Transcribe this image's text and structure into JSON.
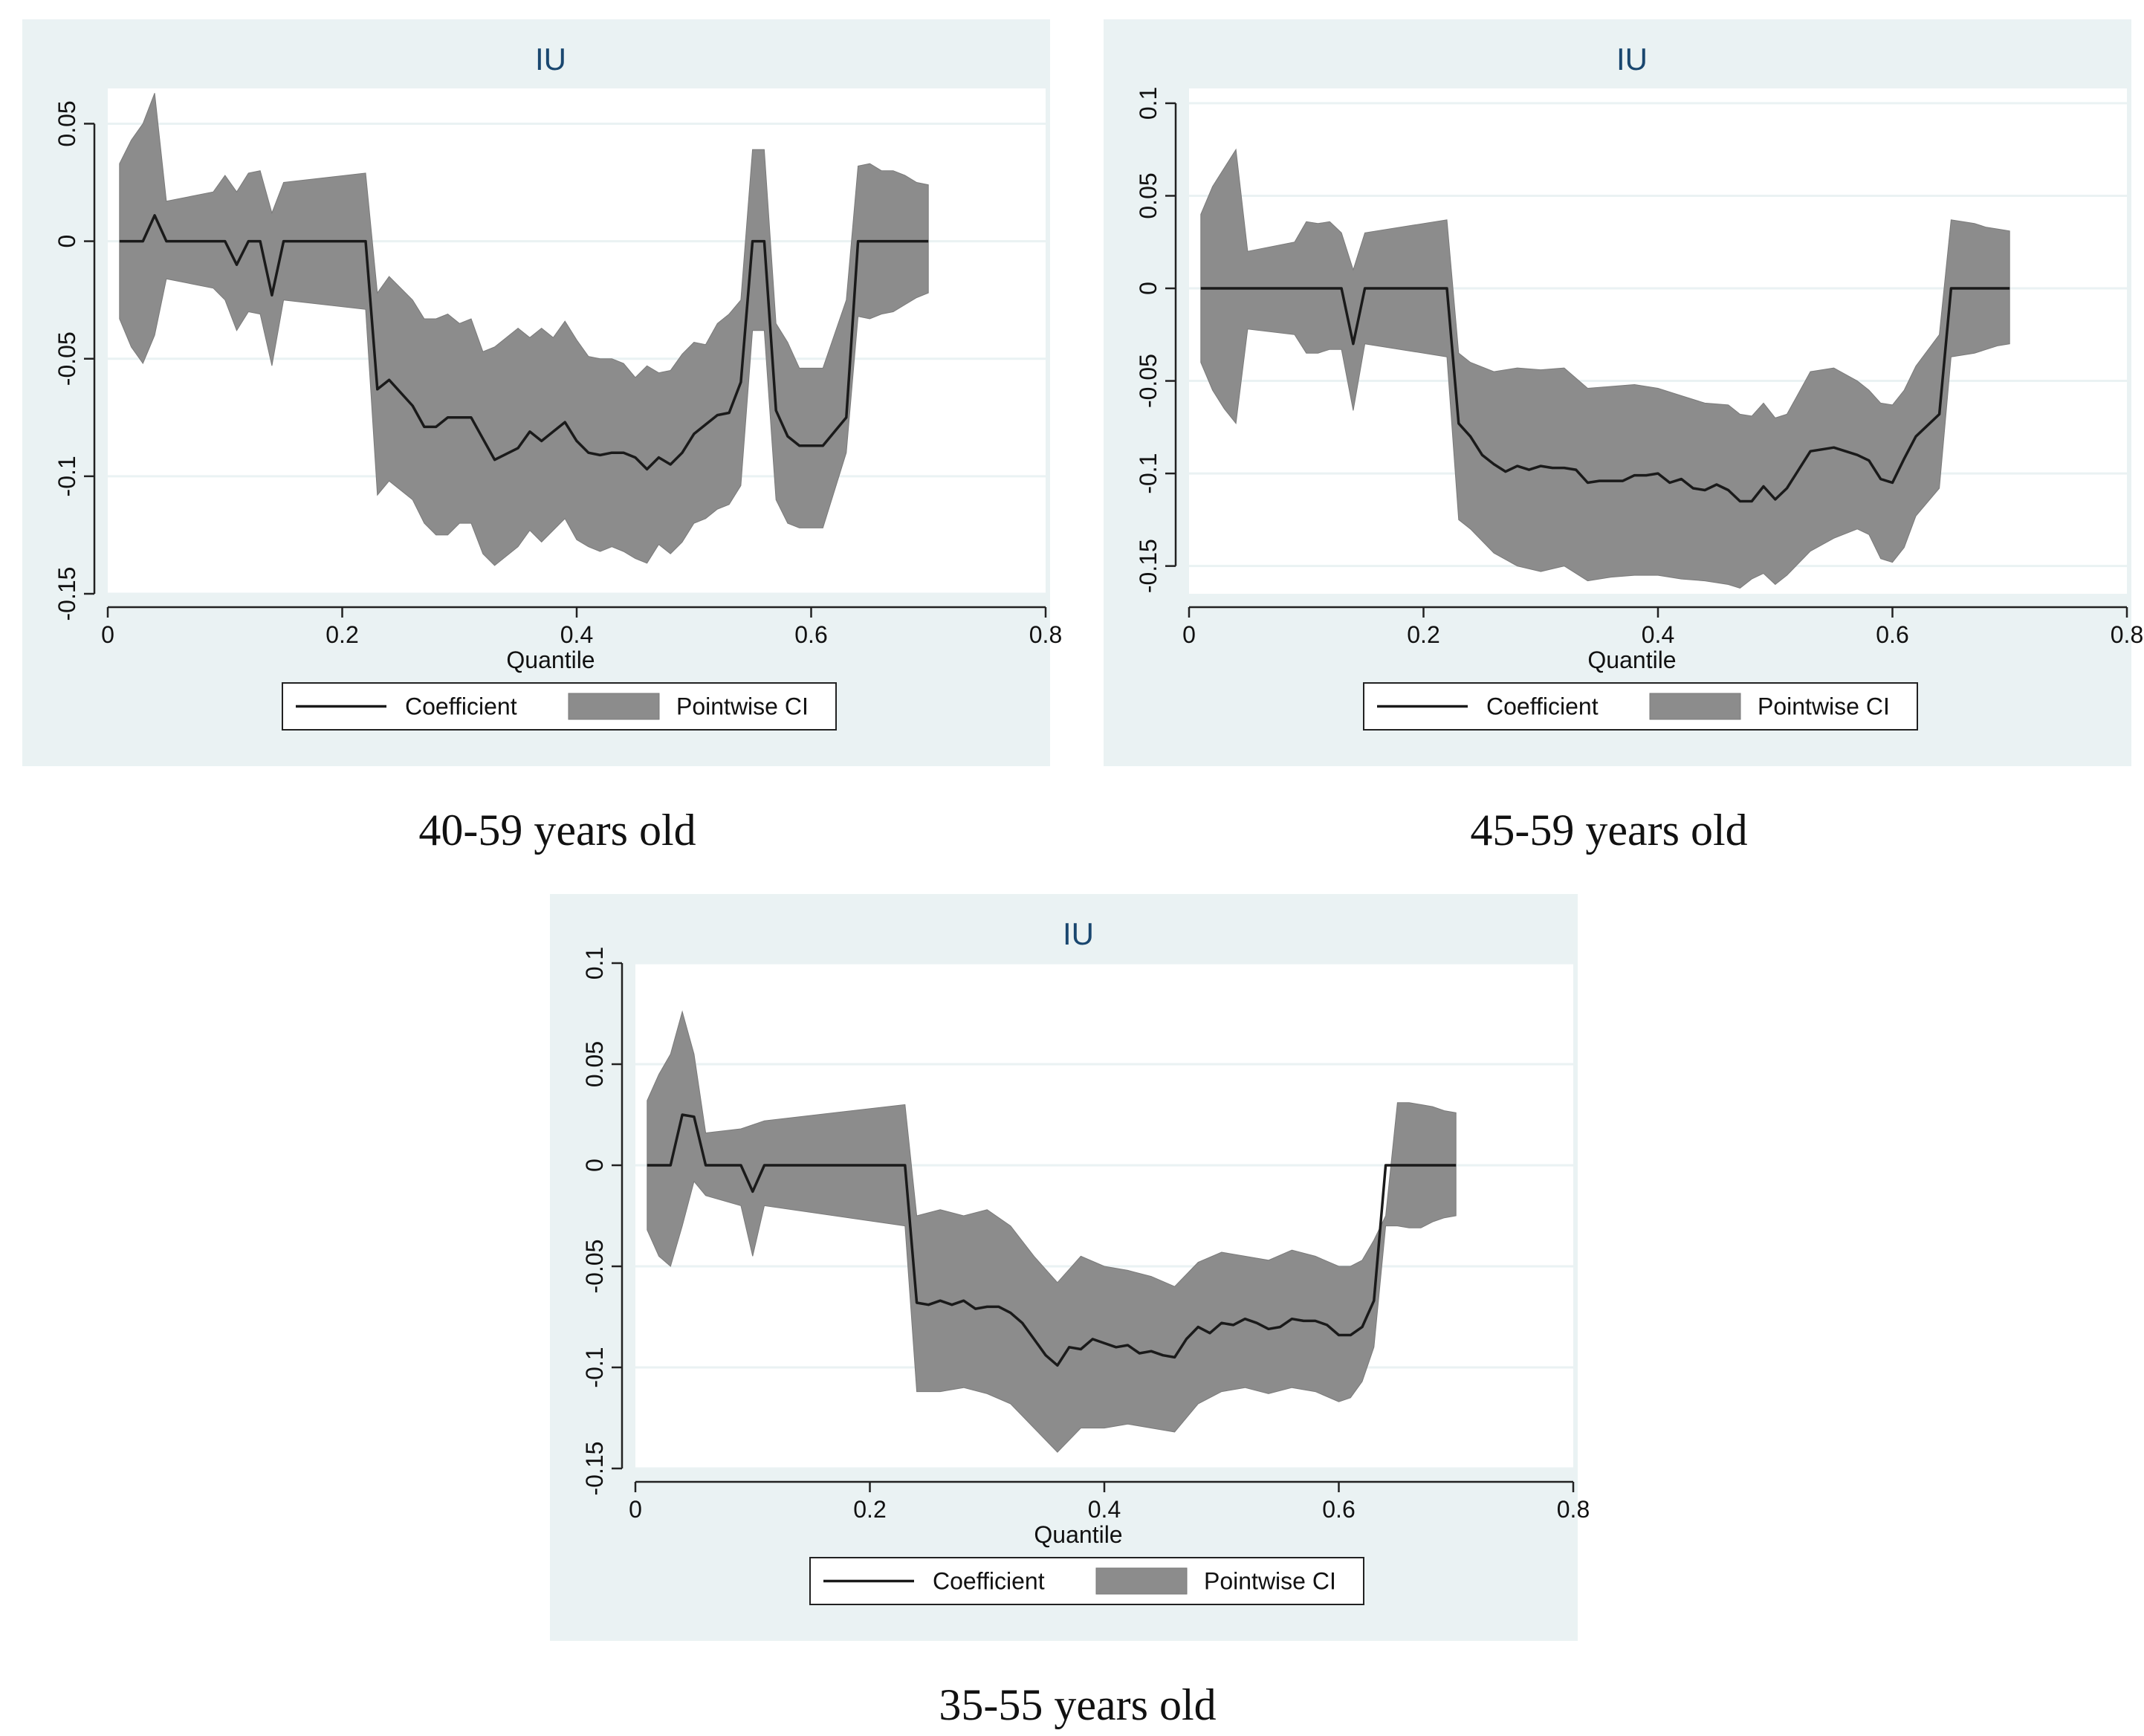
{
  "captions": [
    "40-59 years old",
    "45-59 years old",
    "35-55 years old"
  ],
  "colors": {
    "panel_bg": "#eaf2f3",
    "plot_bg": "#ffffff",
    "ci_fill": "#8c8c8c",
    "coef_line": "#1a1a1a",
    "grid": "#eaf2f3",
    "title": "#1a476f"
  },
  "chart_data": [
    {
      "type": "line",
      "title": "IU",
      "xlabel": "Quantile",
      "ylabel": "",
      "xlim": [
        0,
        0.8
      ],
      "ylim": [
        -0.15,
        0.065
      ],
      "xticks": [
        0,
        0.2,
        0.4,
        0.6,
        0.8
      ],
      "xtick_labels": [
        "0",
        "0.2",
        "0.4",
        "0.6",
        "0.8"
      ],
      "yticks": [
        0.05,
        0,
        -0.05,
        -0.1,
        -0.15
      ],
      "ytick_labels": [
        "0.05",
        "0",
        "-0.05",
        "-0.1",
        "-0.15"
      ],
      "legend": [
        "Coefficient",
        "Pointwise CI"
      ],
      "legend_position": "bottom",
      "series": [
        {
          "name": "Coefficient",
          "x": [
            0.01,
            0.03,
            0.04,
            0.05,
            0.1,
            0.11,
            0.12,
            0.13,
            0.14,
            0.15,
            0.22,
            0.23,
            0.24,
            0.26,
            0.27,
            0.28,
            0.29,
            0.3,
            0.31,
            0.32,
            0.33,
            0.35,
            0.36,
            0.37,
            0.38,
            0.39,
            0.4,
            0.41,
            0.42,
            0.43,
            0.44,
            0.45,
            0.46,
            0.47,
            0.48,
            0.49,
            0.5,
            0.51,
            0.52,
            0.53,
            0.54,
            0.55,
            0.56,
            0.57,
            0.58,
            0.59,
            0.6,
            0.61,
            0.63,
            0.64,
            0.7
          ],
          "values": [
            0,
            0,
            0.011,
            0,
            0,
            -0.01,
            0,
            0,
            -0.023,
            0,
            0,
            -0.063,
            -0.059,
            -0.07,
            -0.079,
            -0.079,
            -0.075,
            -0.075,
            -0.075,
            -0.084,
            -0.093,
            -0.088,
            -0.081,
            -0.085,
            -0.081,
            -0.077,
            -0.085,
            -0.09,
            -0.091,
            -0.09,
            -0.09,
            -0.092,
            -0.097,
            -0.092,
            -0.095,
            -0.09,
            -0.082,
            -0.078,
            -0.074,
            -0.073,
            -0.06,
            0,
            0,
            -0.072,
            -0.083,
            -0.087,
            -0.087,
            -0.087,
            -0.075,
            0,
            0
          ]
        },
        {
          "name": "Pointwise CI upper",
          "x": [
            0.01,
            0.02,
            0.03,
            0.04,
            0.05,
            0.09,
            0.1,
            0.11,
            0.12,
            0.13,
            0.14,
            0.15,
            0.22,
            0.23,
            0.24,
            0.26,
            0.27,
            0.28,
            0.29,
            0.3,
            0.31,
            0.32,
            0.33,
            0.35,
            0.36,
            0.37,
            0.38,
            0.39,
            0.4,
            0.41,
            0.42,
            0.43,
            0.44,
            0.45,
            0.46,
            0.47,
            0.48,
            0.49,
            0.5,
            0.51,
            0.52,
            0.53,
            0.54,
            0.55,
            0.56,
            0.57,
            0.58,
            0.59,
            0.6,
            0.61,
            0.63,
            0.64,
            0.65,
            0.66,
            0.67,
            0.68,
            0.69,
            0.7
          ],
          "values": [
            0.033,
            0.043,
            0.05,
            0.063,
            0.017,
            0.021,
            0.028,
            0.021,
            0.029,
            0.03,
            0.012,
            0.025,
            0.029,
            -0.022,
            -0.015,
            -0.025,
            -0.033,
            -0.033,
            -0.031,
            -0.035,
            -0.033,
            -0.047,
            -0.045,
            -0.037,
            -0.041,
            -0.037,
            -0.041,
            -0.034,
            -0.042,
            -0.049,
            -0.05,
            -0.05,
            -0.052,
            -0.058,
            -0.053,
            -0.056,
            -0.055,
            -0.048,
            -0.043,
            -0.044,
            -0.035,
            -0.031,
            -0.025,
            0.039,
            0.039,
            -0.035,
            -0.043,
            -0.054,
            -0.054,
            -0.054,
            -0.025,
            0.032,
            0.033,
            0.03,
            0.03,
            0.028,
            0.025,
            0.024
          ]
        },
        {
          "name": "Pointwise CI lower",
          "x": [
            0.01,
            0.02,
            0.03,
            0.04,
            0.05,
            0.09,
            0.1,
            0.11,
            0.12,
            0.13,
            0.14,
            0.15,
            0.22,
            0.23,
            0.24,
            0.26,
            0.27,
            0.28,
            0.29,
            0.3,
            0.31,
            0.32,
            0.33,
            0.35,
            0.36,
            0.37,
            0.38,
            0.39,
            0.4,
            0.41,
            0.42,
            0.43,
            0.44,
            0.45,
            0.46,
            0.47,
            0.48,
            0.49,
            0.5,
            0.51,
            0.52,
            0.53,
            0.54,
            0.55,
            0.56,
            0.57,
            0.58,
            0.59,
            0.6,
            0.61,
            0.63,
            0.64,
            0.65,
            0.66,
            0.67,
            0.68,
            0.69,
            0.7
          ],
          "values": [
            -0.033,
            -0.045,
            -0.052,
            -0.04,
            -0.016,
            -0.02,
            -0.025,
            -0.038,
            -0.03,
            -0.031,
            -0.053,
            -0.025,
            -0.029,
            -0.108,
            -0.102,
            -0.11,
            -0.12,
            -0.125,
            -0.125,
            -0.12,
            -0.12,
            -0.133,
            -0.138,
            -0.13,
            -0.123,
            -0.128,
            -0.123,
            -0.118,
            -0.127,
            -0.13,
            -0.132,
            -0.13,
            -0.132,
            -0.135,
            -0.137,
            -0.129,
            -0.133,
            -0.128,
            -0.12,
            -0.118,
            -0.114,
            -0.112,
            -0.104,
            -0.038,
            -0.038,
            -0.11,
            -0.12,
            -0.122,
            -0.122,
            -0.122,
            -0.09,
            -0.032,
            -0.033,
            -0.031,
            -0.03,
            -0.027,
            -0.024,
            -0.022
          ]
        }
      ]
    },
    {
      "type": "line",
      "title": "IU",
      "xlabel": "Quantile",
      "ylabel": "",
      "xlim": [
        0,
        0.8
      ],
      "ylim": [
        -0.165,
        0.108
      ],
      "xticks": [
        0,
        0.2,
        0.4,
        0.6,
        0.8
      ],
      "xtick_labels": [
        "0",
        "0.2",
        "0.4",
        "0.6",
        "0.8"
      ],
      "yticks": [
        0.1,
        0.05,
        0,
        -0.05,
        -0.1,
        -0.15
      ],
      "ytick_labels": [
        "0.1",
        "0.05",
        "0",
        "-0.05",
        "-0.1",
        "-0.15"
      ],
      "legend": [
        "Coefficient",
        "Pointwise CI"
      ],
      "legend_position": "bottom",
      "series": [
        {
          "name": "Coefficient",
          "x": [
            0.01,
            0.13,
            0.14,
            0.15,
            0.22,
            0.23,
            0.24,
            0.25,
            0.26,
            0.27,
            0.28,
            0.29,
            0.3,
            0.31,
            0.32,
            0.33,
            0.34,
            0.35,
            0.36,
            0.37,
            0.38,
            0.39,
            0.4,
            0.41,
            0.42,
            0.43,
            0.44,
            0.45,
            0.46,
            0.47,
            0.48,
            0.49,
            0.5,
            0.51,
            0.52,
            0.53,
            0.54,
            0.55,
            0.56,
            0.57,
            0.58,
            0.59,
            0.6,
            0.61,
            0.62,
            0.64,
            0.65,
            0.7
          ],
          "values": [
            0,
            0,
            -0.03,
            0,
            0,
            -0.073,
            -0.08,
            -0.09,
            -0.095,
            -0.099,
            -0.096,
            -0.098,
            -0.096,
            -0.097,
            -0.097,
            -0.098,
            -0.105,
            -0.104,
            -0.104,
            -0.104,
            -0.101,
            -0.101,
            -0.1,
            -0.105,
            -0.103,
            -0.108,
            -0.109,
            -0.106,
            -0.109,
            -0.115,
            -0.115,
            -0.107,
            -0.114,
            -0.108,
            -0.098,
            -0.088,
            -0.087,
            -0.086,
            -0.088,
            -0.09,
            -0.093,
            -0.103,
            -0.105,
            -0.092,
            -0.08,
            -0.068,
            0,
            0
          ]
        },
        {
          "name": "Pointwise CI upper",
          "x": [
            0.01,
            0.02,
            0.03,
            0.04,
            0.05,
            0.09,
            0.1,
            0.11,
            0.12,
            0.13,
            0.14,
            0.15,
            0.22,
            0.23,
            0.24,
            0.26,
            0.28,
            0.3,
            0.32,
            0.34,
            0.36,
            0.38,
            0.4,
            0.42,
            0.44,
            0.46,
            0.47,
            0.48,
            0.49,
            0.5,
            0.51,
            0.53,
            0.55,
            0.57,
            0.58,
            0.59,
            0.6,
            0.61,
            0.62,
            0.64,
            0.65,
            0.66,
            0.67,
            0.68,
            0.69,
            0.7
          ],
          "values": [
            0.04,
            0.055,
            0.065,
            0.075,
            0.02,
            0.025,
            0.036,
            0.035,
            0.036,
            0.03,
            0.01,
            0.03,
            0.037,
            -0.035,
            -0.04,
            -0.045,
            -0.043,
            -0.044,
            -0.043,
            -0.054,
            -0.053,
            -0.052,
            -0.054,
            -0.058,
            -0.062,
            -0.063,
            -0.068,
            -0.069,
            -0.062,
            -0.07,
            -0.068,
            -0.045,
            -0.043,
            -0.05,
            -0.055,
            -0.062,
            -0.063,
            -0.055,
            -0.042,
            -0.025,
            0.037,
            0.036,
            0.035,
            0.033,
            0.032,
            0.031
          ]
        },
        {
          "name": "Pointwise CI lower",
          "x": [
            0.01,
            0.02,
            0.03,
            0.04,
            0.05,
            0.09,
            0.1,
            0.11,
            0.12,
            0.13,
            0.14,
            0.15,
            0.22,
            0.23,
            0.24,
            0.26,
            0.28,
            0.3,
            0.32,
            0.34,
            0.36,
            0.38,
            0.4,
            0.42,
            0.44,
            0.46,
            0.47,
            0.48,
            0.49,
            0.5,
            0.51,
            0.53,
            0.55,
            0.57,
            0.58,
            0.59,
            0.6,
            0.61,
            0.62,
            0.64,
            0.65,
            0.66,
            0.67,
            0.68,
            0.69,
            0.7
          ],
          "values": [
            -0.04,
            -0.055,
            -0.065,
            -0.073,
            -0.022,
            -0.025,
            -0.035,
            -0.035,
            -0.033,
            -0.033,
            -0.066,
            -0.03,
            -0.037,
            -0.125,
            -0.13,
            -0.143,
            -0.15,
            -0.153,
            -0.15,
            -0.158,
            -0.156,
            -0.155,
            -0.155,
            -0.157,
            -0.158,
            -0.16,
            -0.162,
            -0.157,
            -0.154,
            -0.16,
            -0.155,
            -0.142,
            -0.135,
            -0.13,
            -0.133,
            -0.146,
            -0.148,
            -0.14,
            -0.123,
            -0.108,
            -0.037,
            -0.036,
            -0.035,
            -0.033,
            -0.031,
            -0.03
          ]
        }
      ]
    },
    {
      "type": "line",
      "title": "IU",
      "xlabel": "Quantile",
      "ylabel": "",
      "xlim": [
        0,
        0.8
      ],
      "ylim": [
        -0.15,
        0.1
      ],
      "xticks": [
        0,
        0.2,
        0.4,
        0.6,
        0.8
      ],
      "xtick_labels": [
        "0",
        "0.2",
        "0.4",
        "0.6",
        "0.8"
      ],
      "yticks": [
        0.1,
        0.05,
        0,
        -0.05,
        -0.1,
        -0.15
      ],
      "ytick_labels": [
        "0.1",
        "0.05",
        "0",
        "-0.05",
        "-0.1",
        "-0.15"
      ],
      "legend": [
        "Coefficient",
        "Pointwise CI"
      ],
      "legend_position": "bottom",
      "series": [
        {
          "name": "Coefficient",
          "x": [
            0.01,
            0.03,
            0.04,
            0.05,
            0.06,
            0.09,
            0.1,
            0.11,
            0.23,
            0.24,
            0.25,
            0.26,
            0.27,
            0.28,
            0.29,
            0.3,
            0.31,
            0.32,
            0.33,
            0.34,
            0.35,
            0.36,
            0.37,
            0.38,
            0.39,
            0.4,
            0.41,
            0.42,
            0.43,
            0.44,
            0.45,
            0.46,
            0.47,
            0.48,
            0.49,
            0.5,
            0.51,
            0.52,
            0.53,
            0.54,
            0.55,
            0.56,
            0.57,
            0.58,
            0.59,
            0.6,
            0.61,
            0.62,
            0.63,
            0.64,
            0.7
          ],
          "values": [
            0,
            0,
            0.025,
            0.024,
            0,
            0,
            -0.013,
            0,
            0,
            -0.068,
            -0.069,
            -0.067,
            -0.069,
            -0.067,
            -0.071,
            -0.07,
            -0.07,
            -0.073,
            -0.078,
            -0.086,
            -0.094,
            -0.099,
            -0.09,
            -0.091,
            -0.086,
            -0.088,
            -0.09,
            -0.089,
            -0.093,
            -0.092,
            -0.094,
            -0.095,
            -0.086,
            -0.08,
            -0.083,
            -0.078,
            -0.079,
            -0.076,
            -0.078,
            -0.081,
            -0.08,
            -0.076,
            -0.077,
            -0.077,
            -0.079,
            -0.084,
            -0.084,
            -0.08,
            -0.067,
            0,
            0
          ]
        },
        {
          "name": "Pointwise CI upper",
          "x": [
            0.01,
            0.02,
            0.03,
            0.04,
            0.05,
            0.06,
            0.09,
            0.1,
            0.11,
            0.23,
            0.24,
            0.26,
            0.28,
            0.3,
            0.32,
            0.34,
            0.36,
            0.38,
            0.4,
            0.42,
            0.44,
            0.46,
            0.48,
            0.5,
            0.52,
            0.54,
            0.56,
            0.58,
            0.6,
            0.61,
            0.62,
            0.63,
            0.64,
            0.65,
            0.66,
            0.67,
            0.68,
            0.69,
            0.7
          ],
          "values": [
            0.032,
            0.045,
            0.055,
            0.076,
            0.055,
            0.016,
            0.018,
            0.02,
            0.022,
            0.03,
            -0.025,
            -0.022,
            -0.025,
            -0.022,
            -0.03,
            -0.045,
            -0.058,
            -0.045,
            -0.05,
            -0.052,
            -0.055,
            -0.06,
            -0.048,
            -0.043,
            -0.045,
            -0.047,
            -0.042,
            -0.045,
            -0.05,
            -0.05,
            -0.047,
            -0.037,
            -0.025,
            0.031,
            0.031,
            0.03,
            0.029,
            0.027,
            0.026
          ]
        },
        {
          "name": "Pointwise CI lower",
          "x": [
            0.01,
            0.02,
            0.03,
            0.04,
            0.05,
            0.06,
            0.09,
            0.1,
            0.11,
            0.23,
            0.24,
            0.26,
            0.28,
            0.3,
            0.32,
            0.34,
            0.36,
            0.38,
            0.4,
            0.42,
            0.44,
            0.46,
            0.48,
            0.5,
            0.52,
            0.54,
            0.56,
            0.58,
            0.6,
            0.61,
            0.62,
            0.63,
            0.64,
            0.65,
            0.66,
            0.67,
            0.68,
            0.69,
            0.7
          ],
          "values": [
            -0.032,
            -0.045,
            -0.05,
            -0.03,
            -0.008,
            -0.015,
            -0.02,
            -0.045,
            -0.02,
            -0.03,
            -0.112,
            -0.112,
            -0.11,
            -0.113,
            -0.118,
            -0.13,
            -0.142,
            -0.13,
            -0.13,
            -0.128,
            -0.13,
            -0.132,
            -0.118,
            -0.112,
            -0.11,
            -0.113,
            -0.11,
            -0.112,
            -0.117,
            -0.115,
            -0.107,
            -0.09,
            -0.03,
            -0.03,
            -0.031,
            -0.031,
            -0.028,
            -0.026,
            -0.025
          ]
        }
      ]
    }
  ]
}
